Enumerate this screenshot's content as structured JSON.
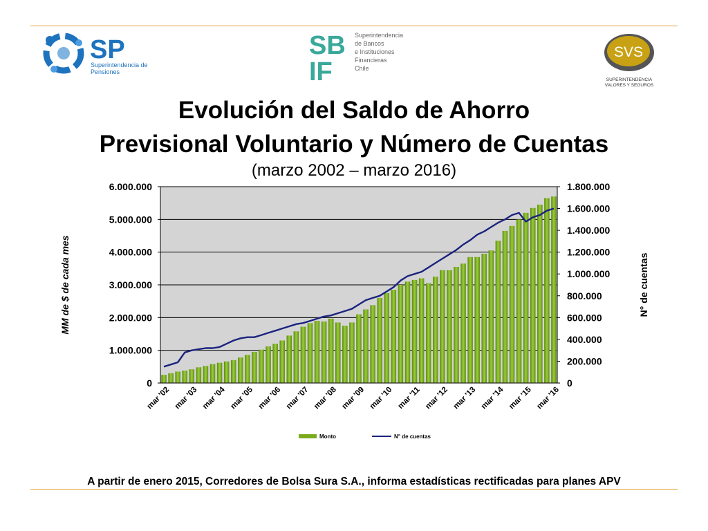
{
  "header": {
    "logo_sp": {
      "initials": "SP",
      "line1": "Superintendencia de",
      "line2": "Pensiones"
    },
    "logo_sbif": {
      "initials_top": "SB",
      "initials_bottom": "IF",
      "lines": [
        "Superintendencia",
        "de Bancos",
        "e Instituciones",
        "Financieras",
        "Chile"
      ]
    },
    "logo_svs": {
      "initials": "SVS",
      "line1": "SUPERINTENDENCIA",
      "line2": "VALORES Y SEGUROS"
    },
    "colors": {
      "sp_blue": "#1e73be",
      "sbif_teal": "#3aa89a",
      "svs_gold": "#c8a214",
      "rule": "#e0a030"
    }
  },
  "title_line1": "Evolución del Saldo de Ahorro",
  "title_line2": "Previsional Voluntario y Número de Cuentas",
  "subtitle": "(marzo 2002 – marzo 2016)",
  "footnote": "A partir de enero 2015, Corredores de Bolsa Sura S.A., informa estadísticas rectificadas para planes APV",
  "chart_data": {
    "type": "bar",
    "ylabel": "MM de $ de cada mes",
    "y2label": "N° de cuentas",
    "ylim": [
      0,
      6000000
    ],
    "y2lim": [
      0,
      1800000
    ],
    "y_ticks": [
      "0",
      "1.000.000",
      "2.000.000",
      "3.000.000",
      "4.000.000",
      "5.000.000",
      "6.000.000"
    ],
    "y2_ticks": [
      "0",
      "200.000",
      "400.000",
      "600.000",
      "800.000",
      "1.000.000",
      "1.200.000",
      "1.400.000",
      "1.600.000",
      "1.800.000"
    ],
    "x_ticks": [
      "mar '02",
      "mar '03",
      "mar '04",
      "mar '05",
      "mar '06",
      "mar '07",
      "mar '08",
      "mar '09",
      "mar '10",
      "mar '11",
      "mar '12",
      "mar '13",
      "mar '14",
      "mar '15",
      "mar '16"
    ],
    "grid": true,
    "legend_position": "bottom",
    "plot_background": "#d4d4d4",
    "series": [
      {
        "name": "Monto",
        "type": "bar",
        "color": "#7aab1c",
        "values": [
          250000,
          300000,
          350000,
          380000,
          420000,
          480000,
          520000,
          580000,
          620000,
          660000,
          700000,
          780000,
          860000,
          950000,
          1020000,
          1120000,
          1200000,
          1300000,
          1450000,
          1580000,
          1720000,
          1830000,
          1900000,
          1880000,
          1970000,
          1850000,
          1750000,
          1850000,
          2100000,
          2250000,
          2380000,
          2600000,
          2750000,
          2850000,
          3000000,
          3100000,
          3150000,
          3200000,
          3050000,
          3250000,
          3450000,
          3450000,
          3550000,
          3650000,
          3850000,
          3850000,
          3950000,
          4050000,
          4350000,
          4650000,
          4800000,
          5000000,
          5200000,
          5350000,
          5450000,
          5650000,
          5700000
        ]
      },
      {
        "name": "N° de cuentas",
        "type": "line",
        "color": "#1a237e",
        "values": [
          150000,
          170000,
          190000,
          280000,
          300000,
          310000,
          320000,
          320000,
          330000,
          360000,
          390000,
          410000,
          420000,
          420000,
          440000,
          460000,
          480000,
          500000,
          520000,
          540000,
          550000,
          570000,
          590000,
          610000,
          620000,
          640000,
          660000,
          680000,
          720000,
          760000,
          780000,
          800000,
          840000,
          880000,
          940000,
          980000,
          1000000,
          1020000,
          1060000,
          1100000,
          1140000,
          1180000,
          1220000,
          1270000,
          1310000,
          1360000,
          1390000,
          1430000,
          1470000,
          1500000,
          1540000,
          1560000,
          1480000,
          1520000,
          1540000,
          1580000,
          1600000
        ]
      }
    ]
  }
}
